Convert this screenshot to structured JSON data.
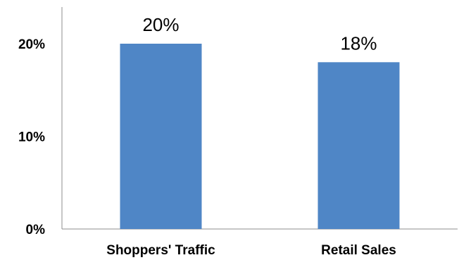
{
  "chart_data": {
    "type": "bar",
    "title": "",
    "xlabel": "",
    "ylabel": "",
    "categories": [
      "Shoppers' Traffic",
      "Retail Sales"
    ],
    "values": [
      20,
      18
    ],
    "data_labels": [
      "20%",
      "18%"
    ],
    "ylim": [
      0,
      20
    ],
    "yticks": [
      0,
      10,
      20
    ],
    "ytick_labels": [
      "0%",
      "10%",
      "20%"
    ],
    "grid": false,
    "legend": "none",
    "bar_color": "#4f86c6"
  }
}
